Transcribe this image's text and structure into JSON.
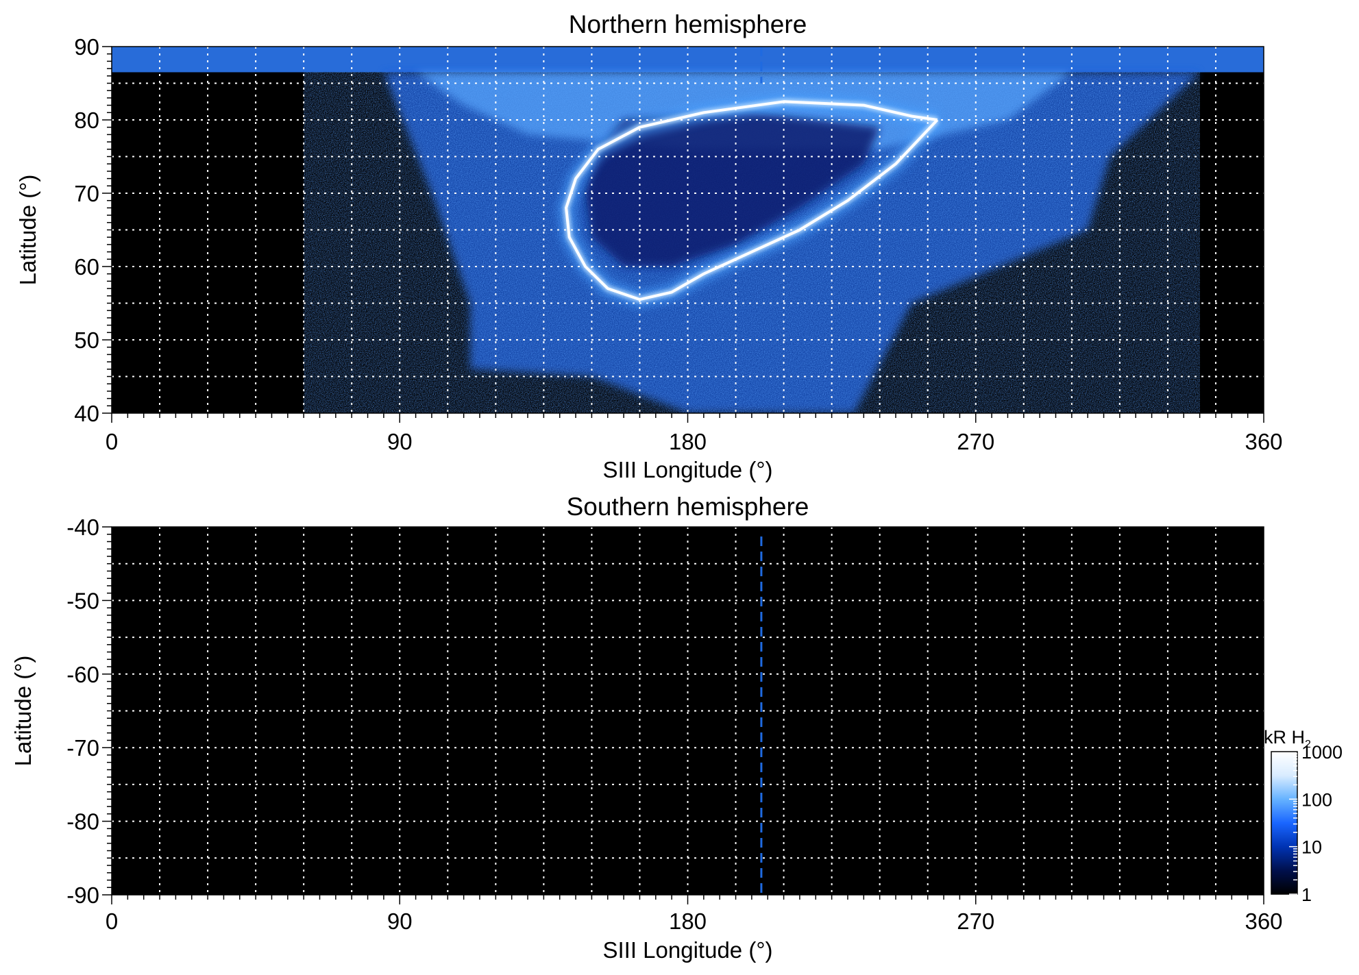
{
  "chart_data": [
    {
      "type": "heatmap",
      "title": "Northern hemisphere",
      "xlabel": "SIII Longitude (°)",
      "ylabel": "Latitude (°)",
      "xlim": [
        0,
        360
      ],
      "ylim": [
        40,
        90
      ],
      "xticks": [
        0,
        90,
        180,
        270,
        360
      ],
      "xtick_labels": [
        "0",
        "90",
        "180",
        "270",
        "360"
      ],
      "yticks": [
        40,
        50,
        60,
        70,
        80,
        90
      ],
      "ytick_labels": [
        "40",
        "50",
        "60",
        "70",
        "80",
        "90"
      ],
      "grid": true,
      "grid_x_step": 15,
      "grid_y_step": 5,
      "dashed_meridian_longitude": 203,
      "colormap": [
        "#000000",
        "#001a66",
        "#0a4fd9",
        "#2d8cff",
        "#9fd0ff",
        "#ffffff"
      ],
      "features": {
        "main_oval": {
          "description_shown": "bright auroral arc",
          "path": [
            [
              258,
              80
            ],
            [
              245,
              74
            ],
            [
              230,
              69
            ],
            [
              215,
              65
            ],
            [
              200,
              62
            ],
            [
              185,
              59
            ],
            [
              175,
              56.5
            ],
            [
              165,
              55.5
            ],
            [
              155,
              57
            ],
            [
              148,
              60
            ],
            [
              143,
              64
            ],
            [
              142,
              68
            ],
            [
              145,
              72
            ],
            [
              152,
              76
            ],
            [
              165,
              79
            ],
            [
              185,
              81
            ],
            [
              210,
              82.5
            ],
            [
              235,
              82
            ],
            [
              250,
              80.5
            ],
            [
              258,
              80
            ]
          ],
          "intensity_kR": 1000
        },
        "emission_region_lon": [
          110,
          310
        ],
        "emission_region_lat_min": 40
      }
    },
    {
      "type": "heatmap",
      "title": "Southern hemisphere",
      "xlabel": "SIII Longitude (°)",
      "ylabel": "Latitude (°)",
      "xlim": [
        0,
        360
      ],
      "ylim": [
        -90,
        -40
      ],
      "xticks": [
        0,
        90,
        180,
        270,
        360
      ],
      "xtick_labels": [
        "0",
        "90",
        "180",
        "270",
        "360"
      ],
      "yticks": [
        -90,
        -80,
        -70,
        -60,
        -50,
        -40
      ],
      "ytick_labels": [
        "-90",
        "-80",
        "-70",
        "-60",
        "-50",
        "-40"
      ],
      "grid": true,
      "grid_x_step": 15,
      "grid_y_step": 5,
      "dashed_meridian_longitude": 203
    }
  ],
  "colorbar": {
    "label": "kR H",
    "label_subscript": "2",
    "scale": "log",
    "range": [
      1,
      1000
    ],
    "ticks": [
      1,
      10,
      100,
      1000
    ],
    "tick_labels": [
      "1",
      "10",
      "100",
      "1000"
    ],
    "colors": [
      "#000000",
      "#00104d",
      "#0033b3",
      "#1a66ff",
      "#66b3ff",
      "#d9ecff",
      "#ffffff"
    ]
  }
}
